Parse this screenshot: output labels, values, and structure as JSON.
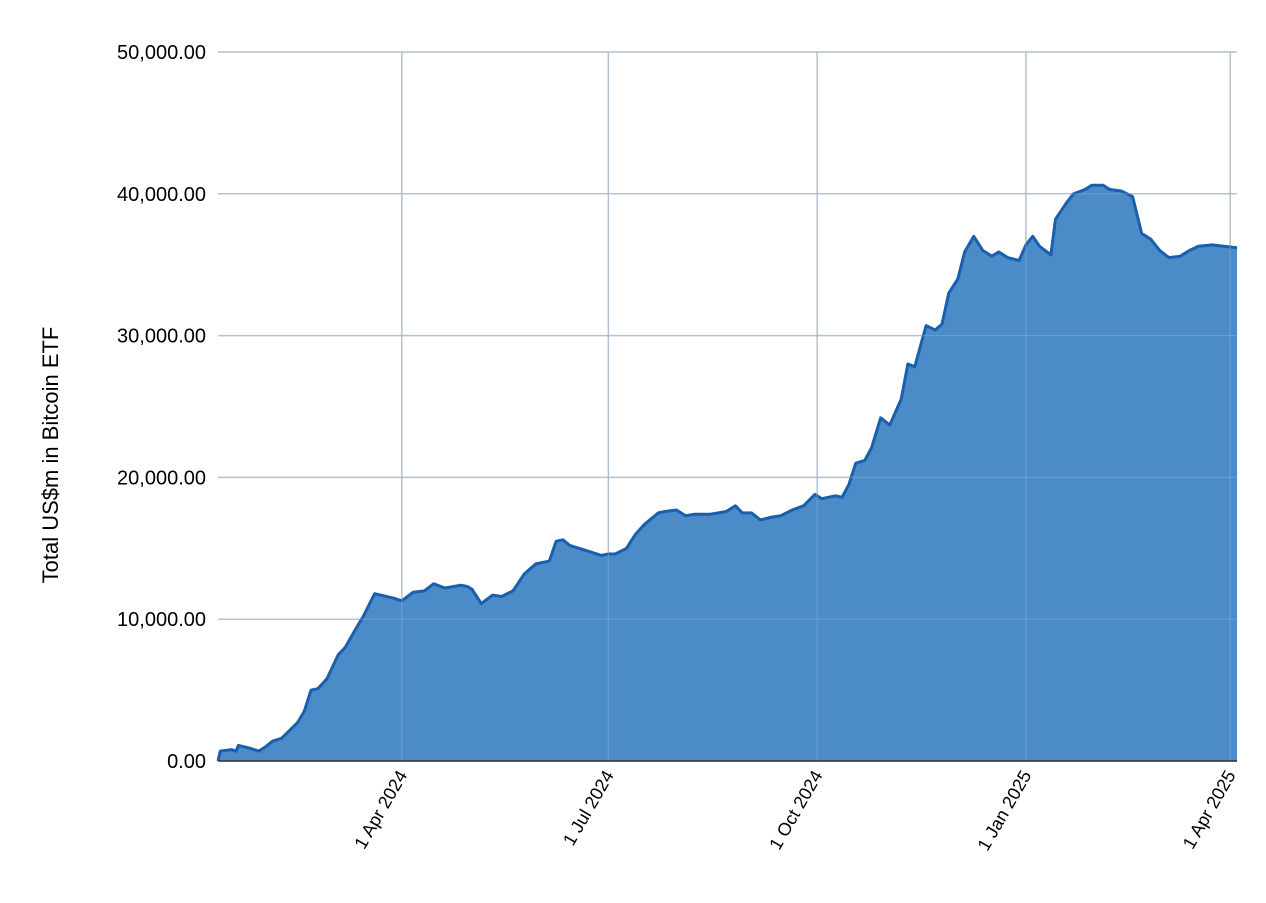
{
  "chart_data": {
    "type": "area",
    "title": "",
    "xlabel": "",
    "ylabel": "Total US$m in Bitcoin ETF",
    "ylim": [
      0,
      50000
    ],
    "xlim": [
      "2024-01-11",
      "2025-04-04"
    ],
    "grid": true,
    "legend": "none",
    "yticks": [
      {
        "value": 0,
        "label": "0.00"
      },
      {
        "value": 10000,
        "label": "10,000.00"
      },
      {
        "value": 20000,
        "label": "20,000.00"
      },
      {
        "value": 30000,
        "label": "30,000.00"
      },
      {
        "value": 40000,
        "label": "40,000.00"
      },
      {
        "value": 50000,
        "label": "50,000.00"
      }
    ],
    "xticks": [
      {
        "date": "2024-04-01",
        "label": "1 Apr 2024"
      },
      {
        "date": "2024-07-01",
        "label": "1 Jul 2024"
      },
      {
        "date": "2024-10-01",
        "label": "1 Oct 2024"
      },
      {
        "date": "2025-01-01",
        "label": "1 Jan 2025"
      },
      {
        "date": "2025-04-01",
        "label": "1 Apr 2025"
      }
    ],
    "colors": {
      "fill": "#4a8bc8",
      "line": "#1a5fae",
      "grid": "#cccccc",
      "axis": "#333333"
    },
    "series": [
      {
        "x": [
          "2024-01-11",
          "2024-01-12",
          "2024-01-17",
          "2024-01-19",
          "2024-01-20",
          "2024-01-25",
          "2024-01-29",
          "2024-02-01",
          "2024-02-04",
          "2024-02-08",
          "2024-02-15",
          "2024-02-18",
          "2024-02-21",
          "2024-02-24",
          "2024-02-28",
          "2024-03-04",
          "2024-03-07",
          "2024-03-12",
          "2024-03-15",
          "2024-03-20",
          "2024-03-28",
          "2024-04-01",
          "2024-04-06",
          "2024-04-11",
          "2024-04-15",
          "2024-04-20",
          "2024-04-27",
          "2024-04-30",
          "2024-05-02",
          "2024-05-06",
          "2024-05-11",
          "2024-05-15",
          "2024-05-20",
          "2024-05-25",
          "2024-05-30",
          "2024-06-05",
          "2024-06-08",
          "2024-06-11",
          "2024-06-14",
          "2024-06-20",
          "2024-06-28",
          "2024-07-01",
          "2024-07-04",
          "2024-07-09",
          "2024-07-13",
          "2024-07-17",
          "2024-07-23",
          "2024-07-26",
          "2024-07-31",
          "2024-08-04",
          "2024-08-08",
          "2024-08-15",
          "2024-08-22",
          "2024-08-26",
          "2024-08-29",
          "2024-09-02",
          "2024-09-06",
          "2024-09-11",
          "2024-09-15",
          "2024-09-20",
          "2024-09-25",
          "2024-09-30",
          "2024-10-03",
          "2024-10-09",
          "2024-10-12",
          "2024-10-15",
          "2024-10-18",
          "2024-10-22",
          "2024-10-25",
          "2024-10-29",
          "2024-11-02",
          "2024-11-07",
          "2024-11-10",
          "2024-11-13",
          "2024-11-18",
          "2024-11-22",
          "2024-11-25",
          "2024-11-28",
          "2024-12-02",
          "2024-12-05",
          "2024-12-09",
          "2024-12-13",
          "2024-12-17",
          "2024-12-20",
          "2024-12-24",
          "2024-12-29",
          "2025-01-01",
          "2025-01-04",
          "2025-01-07",
          "2025-01-12",
          "2025-01-14",
          "2025-01-19",
          "2025-01-22",
          "2025-01-27",
          "2025-01-30",
          "2025-02-04",
          "2025-02-07",
          "2025-02-12",
          "2025-02-17",
          "2025-02-21",
          "2025-02-25",
          "2025-03-01",
          "2025-03-05",
          "2025-03-10",
          "2025-03-14",
          "2025-03-18",
          "2025-03-24",
          "2025-03-29",
          "2025-04-04"
        ],
        "values": [
          0,
          700,
          800,
          700,
          1100,
          900,
          700,
          1000,
          1400,
          1600,
          2700,
          3500,
          5000,
          5100,
          5800,
          7500,
          8000,
          9400,
          10200,
          11800,
          11500,
          11300,
          11900,
          12000,
          12500,
          12200,
          12400,
          12300,
          12100,
          11100,
          11700,
          11600,
          12000,
          13200,
          13900,
          14100,
          15500,
          15600,
          15200,
          14900,
          14500,
          14600,
          14600,
          15000,
          16000,
          16700,
          17500,
          17600,
          17700,
          17300,
          17400,
          17400,
          17600,
          18000,
          17500,
          17500,
          17000,
          17200,
          17300,
          17700,
          18000,
          18800,
          18500,
          18700,
          18600,
          19500,
          21000,
          21200,
          22100,
          24200,
          23700,
          25500,
          28000,
          27800,
          30700,
          30400,
          30800,
          33000,
          34000,
          35900,
          37000,
          36000,
          35600,
          35900,
          35500,
          35300,
          36400,
          37000,
          36300,
          35700,
          38200,
          39400,
          40000,
          40300,
          40600,
          40600,
          40300,
          40200,
          39800,
          37200,
          36800,
          36000,
          35500,
          35600,
          36000,
          36300,
          36400,
          36300,
          36200
        ]
      }
    ]
  }
}
